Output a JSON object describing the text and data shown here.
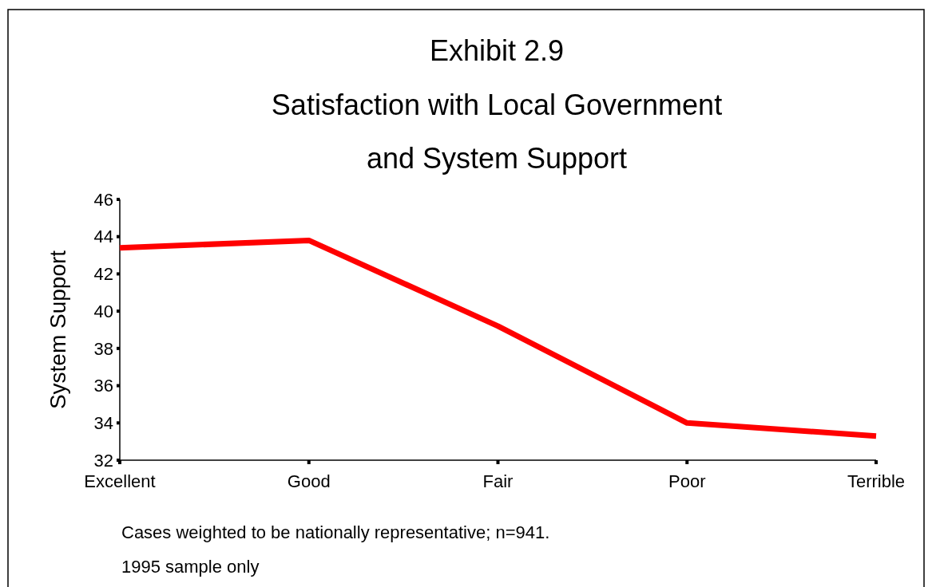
{
  "chart_data": {
    "type": "line",
    "title": "Exhibit 2.9",
    "subtitle": "Satisfaction with Local Government\nand System Support",
    "ylabel": "System Support",
    "categories": [
      "Excellent",
      "Good",
      "Fair",
      "Poor",
      "Terrible"
    ],
    "series": [
      {
        "color": "#ff0000",
        "values": [
          43.4,
          43.8,
          39.2,
          34.0,
          33.3
        ]
      }
    ],
    "ylim": [
      32,
      46
    ],
    "yticks": [
      32,
      34,
      36,
      38,
      40,
      42,
      44,
      46
    ],
    "grid": false,
    "marker": "none",
    "line_style": "solid",
    "annotations": [
      "Cases weighted to be nationally representative; n=941.",
      "1995 sample only"
    ]
  }
}
